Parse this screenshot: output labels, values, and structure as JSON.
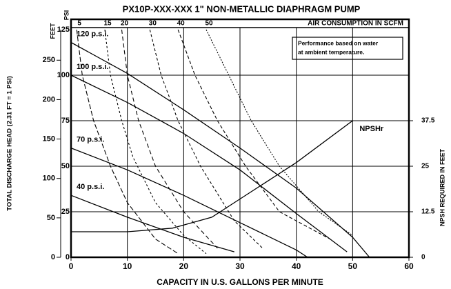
{
  "chart_data": {
    "type": "line",
    "title": "PX10P-XXX-XXX 1\" NON-METALLIC DIAPHRAGM PUMP",
    "x_label": "CAPACITY IN U.S. GALLONS PER MINUTE",
    "y_label": "TOTAL DISCHARGE HEAD (2.31 FT = 1 PSI)",
    "y_unit": "PSI",
    "feet_unit": "FEET",
    "y2_label": "NPSH REQUIRED IN FEET",
    "top_label": "AIR CONSUMPTION IN SCFM",
    "annotation": [
      "Performance based on water",
      "at ambient temperature."
    ],
    "xlim": [
      0,
      60
    ],
    "xticks": [
      0,
      10,
      20,
      30,
      40,
      50,
      60
    ],
    "ylim": [
      0,
      125
    ],
    "yticks": [
      0,
      25,
      50,
      75,
      100,
      125
    ],
    "feet_lim": [
      0,
      288.75
    ],
    "feet_ticks": [
      0,
      50,
      100,
      150,
      200,
      250
    ],
    "y2lim": [
      0,
      62.5
    ],
    "y2ticks": [
      0,
      12.5,
      25,
      37.5
    ],
    "grid": true,
    "series": [
      {
        "name": "120 p.s.i.",
        "color": "#000000",
        "x": [
          0,
          10,
          20,
          30,
          40,
          50,
          53
        ],
        "values": [
          118,
          101,
          81,
          60,
          38,
          11,
          0
        ]
      },
      {
        "name": "100 p.s.i.",
        "color": "#000000",
        "x": [
          0,
          10,
          20,
          30,
          40,
          49
        ],
        "values": [
          100,
          85,
          68,
          48,
          24,
          3
        ]
      },
      {
        "name": "70 p.s.i.",
        "color": "#000000",
        "x": [
          0,
          10,
          20,
          30,
          40,
          42
        ],
        "values": [
          60,
          48,
          34,
          19,
          4,
          0
        ]
      },
      {
        "name": "40 p.s.i.",
        "color": "#000000",
        "x": [
          0,
          10,
          20,
          29
        ],
        "values": [
          34,
          22,
          11,
          3
        ]
      },
      {
        "name": "NPSHr",
        "color": "#000000",
        "axis": "y2",
        "x": [
          0,
          10,
          18,
          25,
          30,
          40,
          50
        ],
        "values": [
          7,
          7,
          8,
          11,
          16,
          26,
          37.5
        ]
      }
    ],
    "air_series": [
      {
        "name": "5",
        "color": "#000000",
        "x": [
          1,
          2,
          4,
          7,
          10,
          15,
          19
        ],
        "values": [
          125,
          100,
          75,
          50,
          30,
          10,
          2
        ]
      },
      {
        "name": "15",
        "color": "#000000",
        "x": [
          6,
          7,
          9,
          11,
          15,
          20,
          24
        ],
        "values": [
          125,
          100,
          75,
          55,
          30,
          12,
          2
        ]
      },
      {
        "name": "20",
        "color": "#000000",
        "x": [
          9,
          10,
          12,
          15,
          20,
          26
        ],
        "values": [
          125,
          100,
          75,
          50,
          25,
          5
        ]
      },
      {
        "name": "30",
        "color": "#000000",
        "x": [
          14,
          16,
          19,
          23,
          29,
          34
        ],
        "values": [
          125,
          100,
          75,
          50,
          20,
          5
        ]
      },
      {
        "name": "40",
        "color": "#000000",
        "x": [
          19,
          22,
          26,
          31,
          37,
          46
        ],
        "values": [
          125,
          100,
          75,
          50,
          25,
          10
        ]
      },
      {
        "name": "50",
        "color": "#000000",
        "x": [
          24,
          28,
          32,
          37,
          44,
          50
        ],
        "values": [
          125,
          100,
          75,
          50,
          25,
          12
        ]
      }
    ]
  }
}
